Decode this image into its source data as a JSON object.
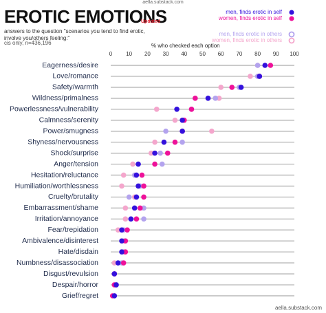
{
  "chart_data": {
    "type": "dot",
    "source": "aella.substack.com",
    "title": "EROTIC EMOTIONS",
    "badge": "Updated",
    "subtitle": "answers to the question \"scenarios you tend to find erotic, involve you/others feeling:\"",
    "note": "cis only, n=436,196",
    "xlabel": "% who checked each option",
    "footer": "aella.substack.com",
    "xlim": [
      0,
      100
    ],
    "xticks": [
      0,
      10,
      20,
      30,
      40,
      50,
      60,
      70,
      80,
      90,
      100
    ],
    "categories": [
      "Eagerness/desire",
      "Love/romance",
      "Safety/warmth",
      "Wildness/primalness",
      "Powerlessness/vulnerability",
      "Calmness/serenity",
      "Power/smugness",
      "Shyness/nervousness",
      "Shock/surprise",
      "Anger/tension",
      "Hesitation/reluctance",
      "Humiliation/worthlessness",
      "Cruelty/brutality",
      "Embarrassment/shame",
      "Irritation/annoyance",
      "Fear/trepidation",
      "Ambivalence/disinterest",
      "Hate/disdain",
      "Numbness/disassociation",
      "Disgust/revulsion",
      "Despair/horror",
      "Grief/regret"
    ],
    "series": [
      {
        "name": "men, finds erotic in self",
        "color": "#3311dd",
        "marker": "filled",
        "values": [
          84,
          81,
          71,
          53,
          36,
          39,
          39,
          29,
          24,
          15,
          14,
          15,
          14,
          13,
          11,
          6,
          6,
          6,
          4,
          2,
          3,
          2
        ]
      },
      {
        "name": "women, finds erotic in self",
        "color": "#ee1199",
        "marker": "filled",
        "values": [
          87,
          81,
          66,
          46,
          44,
          40,
          39,
          35,
          31,
          24,
          17,
          18,
          18,
          16,
          14,
          9,
          8,
          8,
          7,
          2,
          2,
          1
        ]
      },
      {
        "name": "men, finds erotic in others",
        "color": "#b3a3ee",
        "marker": "ring",
        "values": [
          80,
          80,
          70,
          57,
          44,
          40,
          30,
          39,
          27,
          28,
          13,
          16,
          10,
          18,
          18,
          7,
          8,
          7,
          6,
          2,
          3,
          2
        ]
      },
      {
        "name": "women, finds erotic in others",
        "color": "#f4a6cc",
        "marker": "ring",
        "values": [
          80,
          76,
          60,
          59,
          25,
          35,
          55,
          24,
          22,
          12,
          7,
          6,
          13,
          8,
          8,
          4,
          7,
          7,
          2,
          2,
          3,
          2
        ]
      }
    ],
    "grid": true
  }
}
